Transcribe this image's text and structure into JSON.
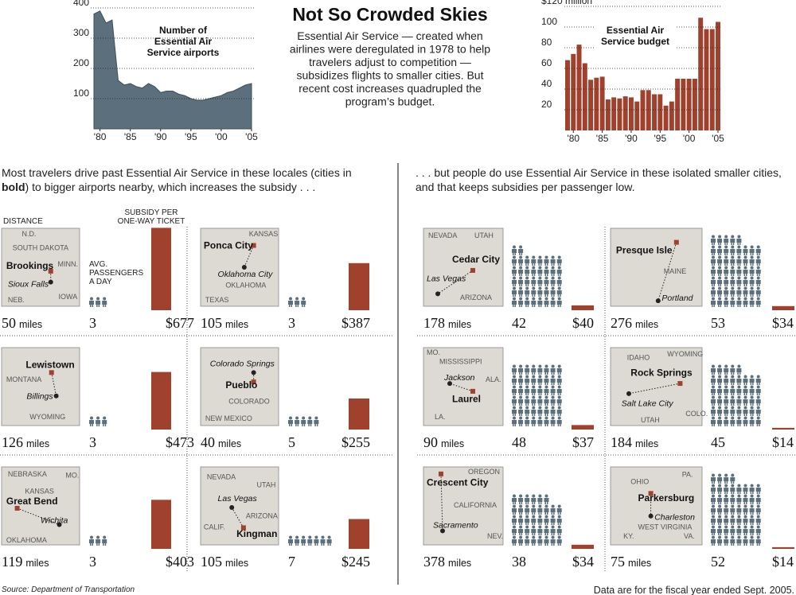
{
  "title": "Not So Crowded Skies",
  "description": [
    "Essential Air Service — created when",
    "airlines were deregulated in 1978 to help",
    "travelers adjust to competition —",
    "subsidizes flights to smaller cities. But",
    "recent cost increases quadrupled the",
    "program’s budget."
  ],
  "chart_data": [
    {
      "type": "area",
      "label_lines": [
        "Number of",
        "Essential Air",
        "Service airports"
      ],
      "color": "#5b6f7c",
      "x": [
        1979,
        1980,
        1981,
        1982,
        1983,
        1984,
        1985,
        1986,
        1987,
        1988,
        1989,
        1990,
        1991,
        1992,
        1993,
        1994,
        1995,
        1996,
        1997,
        1998,
        1999,
        2000,
        2001,
        2002,
        2003,
        2004,
        2005
      ],
      "values": [
        380,
        390,
        350,
        360,
        160,
        145,
        150,
        140,
        135,
        150,
        140,
        120,
        125,
        125,
        115,
        110,
        100,
        95,
        95,
        100,
        105,
        110,
        120,
        125,
        135,
        145,
        150
      ],
      "xlim": [
        1979,
        2005
      ],
      "ylim": [
        0,
        400
      ],
      "yticks": [
        100,
        200,
        300,
        400
      ],
      "grid": true,
      "xticks": [
        {
          "value": 1980,
          "label": "'80"
        },
        {
          "value": 1985,
          "label": "'85"
        },
        {
          "value": 1990,
          "label": "'90"
        },
        {
          "value": 1995,
          "label": "'95"
        },
        {
          "value": 2000,
          "label": "'00"
        },
        {
          "value": 2005,
          "label": "'05"
        }
      ]
    },
    {
      "type": "bar",
      "label_lines": [
        "Essential Air",
        "Service budget"
      ],
      "color": "#a0412d",
      "x": [
        1979,
        1980,
        1981,
        1982,
        1983,
        1984,
        1985,
        1986,
        1987,
        1988,
        1989,
        1990,
        1991,
        1992,
        1993,
        1994,
        1995,
        1996,
        1997,
        1998,
        1999,
        2000,
        2001,
        2002,
        2003,
        2004,
        2005
      ],
      "values": [
        68,
        74,
        83,
        65,
        49,
        51,
        52,
        30,
        32,
        31,
        33,
        32,
        28,
        39,
        39,
        35,
        35,
        24,
        28,
        50,
        50,
        50,
        50,
        109,
        98,
        98,
        105
      ],
      "xlim": [
        1979,
        2005
      ],
      "ylim": [
        0,
        120
      ],
      "yticks": [
        20,
        40,
        60,
        80,
        100,
        {
          "value": 120,
          "label": "$120 million"
        }
      ],
      "grid": true,
      "xticks": [
        {
          "value": 1980,
          "label": "'80"
        },
        {
          "value": 1985,
          "label": "'85"
        },
        {
          "value": 1990,
          "label": "'90"
        },
        {
          "value": 1995,
          "label": "'95"
        },
        {
          "value": 2000,
          "label": "'00"
        },
        {
          "value": 2005,
          "label": "'05"
        }
      ]
    }
  ],
  "intro_left": [
    "Most travelers drive past Essential Air Service in these locales (cities in",
    "bold",
    ") to bigger airports nearby, which increases the subsidy . . ."
  ],
  "intro_right": [
    ". . . but people do use Essential Air Service in these isolated smaller cities,",
    "and that keeps subsidies per passenger low."
  ],
  "headers": {
    "distance": "DISTANCE",
    "passengers": [
      "AVG.",
      "PASSENGERS",
      "A DAY"
    ],
    "subsidy": [
      "SUBSIDY PER",
      "ONE-WAY TICKET"
    ]
  },
  "distance_unit": "miles",
  "subsidy_color": "#a0412d",
  "passenger_color": "#5b6f7c",
  "cities": [
    {
      "name": "Brookings",
      "hub": "Sioux Falls",
      "map_labels": [
        "N.D.",
        "SOUTH DAKOTA",
        "MINN.",
        "NEB.",
        "IOWA"
      ],
      "distance": 50,
      "passengers": 3,
      "subsidy": 677,
      "subsidy_label": "$677"
    },
    {
      "name": "Ponca City",
      "hub": "Oklahoma City",
      "map_labels": [
        "KANSAS",
        "OKLAHOMA",
        "TEXAS"
      ],
      "distance": 105,
      "passengers": 3,
      "subsidy": 387,
      "subsidy_label": "$387"
    },
    {
      "name": "Lewistown",
      "hub": "Billings",
      "map_labels": [
        "MONTANA",
        "WYOMING"
      ],
      "distance": 126,
      "passengers": 3,
      "subsidy": 473,
      "subsidy_label": "$473"
    },
    {
      "name": "Pueblo",
      "hub": "Colorado Springs",
      "map_labels": [
        "COLORADO",
        "NEW MEXICO"
      ],
      "distance": 40,
      "passengers": 5,
      "subsidy": 255,
      "subsidy_label": "$255"
    },
    {
      "name": "Great Bend",
      "hub": "Wichita",
      "map_labels": [
        "NEBRASKA",
        "MO.",
        "KANSAS",
        "OKLAHOMA"
      ],
      "distance": 119,
      "passengers": 3,
      "subsidy": 403,
      "subsidy_label": "$403"
    },
    {
      "name": "Kingman",
      "hub": "Las Vegas",
      "map_labels": [
        "NEVADA",
        "UTAH",
        "ARIZONA",
        "CALIF."
      ],
      "distance": 105,
      "passengers": 7,
      "subsidy": 245,
      "subsidy_label": "$245"
    },
    {
      "name": "Cedar City",
      "hub": "Las Vegas",
      "map_labels": [
        "NEVADA",
        "UTAH",
        "ARIZONA"
      ],
      "distance": 178,
      "passengers": 42,
      "subsidy": 40,
      "subsidy_label": "$40"
    },
    {
      "name": "Presque Isle",
      "hub": "Portland",
      "map_labels": [
        "MAINE"
      ],
      "distance": 276,
      "passengers": 53,
      "subsidy": 34,
      "subsidy_label": "$34"
    },
    {
      "name": "Laurel",
      "hub": "Jackson",
      "map_labels": [
        "MO.",
        "MISSISSIPPI",
        "ALA.",
        "LA."
      ],
      "distance": 90,
      "passengers": 48,
      "subsidy": 37,
      "subsidy_label": "$37"
    },
    {
      "name": "Rock Springs",
      "hub": "Salt Lake City",
      "map_labels": [
        "IDAHO",
        "WYOMING",
        "UTAH",
        "COLO."
      ],
      "distance": 184,
      "passengers": 45,
      "subsidy": 14,
      "subsidy_label": "$14"
    },
    {
      "name": "Crescent City",
      "hub": "Sacramento",
      "map_labels": [
        "OREGON",
        "CALIFORNIA",
        "NEV."
      ],
      "distance": 378,
      "passengers": 38,
      "subsidy": 34,
      "subsidy_label": "$34"
    },
    {
      "name": "Parkersburg",
      "hub": "Charleston",
      "map_labels": [
        "OHIO",
        "PA.",
        "WEST VIRGINIA",
        "KY.",
        "VA."
      ],
      "distance": 75,
      "passengers": 52,
      "subsidy": 14,
      "subsidy_label": "$14"
    }
  ],
  "source": "Source: Department of Transportation",
  "note": "Data are for the fiscal year ended Sept. 2005."
}
